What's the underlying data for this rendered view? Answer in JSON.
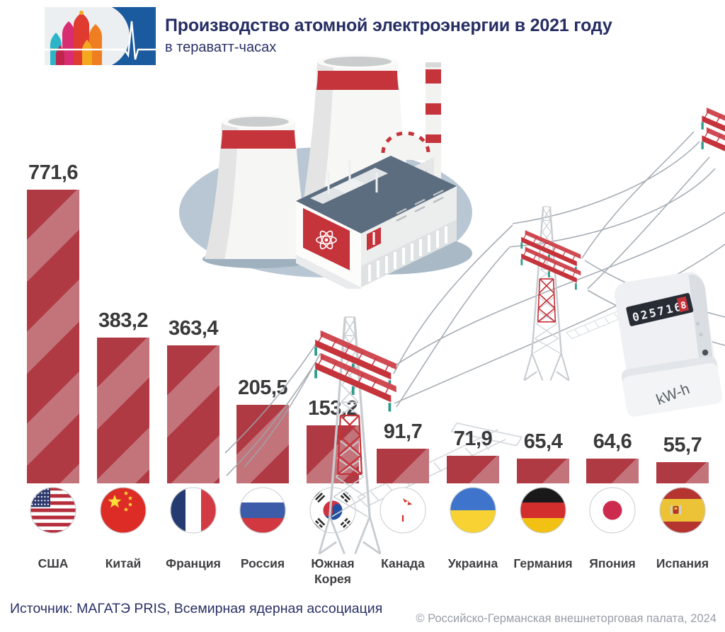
{
  "header": {
    "title": "Производство атомной электроэнергии в 2021 году",
    "subtitle": "в тераватт-часах"
  },
  "chart_data": {
    "type": "bar",
    "title": "Производство атомной электроэнергии в 2021 году",
    "subtitle": "в тераватт-часах",
    "categories": [
      "США",
      "Китай",
      "Франция",
      "Россия",
      "Южная Корея",
      "Канада",
      "Украина",
      "Германия",
      "Япония",
      "Испания"
    ],
    "values": [
      771.6,
      383.2,
      363.4,
      205.5,
      153.2,
      91.7,
      71.9,
      65.4,
      64.6,
      55.7
    ],
    "value_labels": [
      "771,6",
      "383,2",
      "363,4",
      "205,5",
      "153,2",
      "91,7",
      "71,9",
      "65,4",
      "64,6",
      "55,7"
    ],
    "flags": [
      "usa",
      "china",
      "france",
      "russia",
      "south-korea",
      "canada",
      "ukraine",
      "germany",
      "japan",
      "spain"
    ],
    "bar_color": "#b03a43",
    "bar_stripe_color": "#c3747b",
    "value_text_color": "#3a3a3c",
    "ylim": [
      0,
      800
    ],
    "grid": false,
    "legend": false
  },
  "illustration": {
    "meter": {
      "reading": "025716",
      "rolling_digit": "8",
      "unit": "kW-h"
    }
  },
  "footer": {
    "source": "Источник: МАГАТЭ PRIS, Всемирная ядерная ассоциация",
    "copyright": "© Российско-Германская внешнеторговая палата, 2024"
  }
}
